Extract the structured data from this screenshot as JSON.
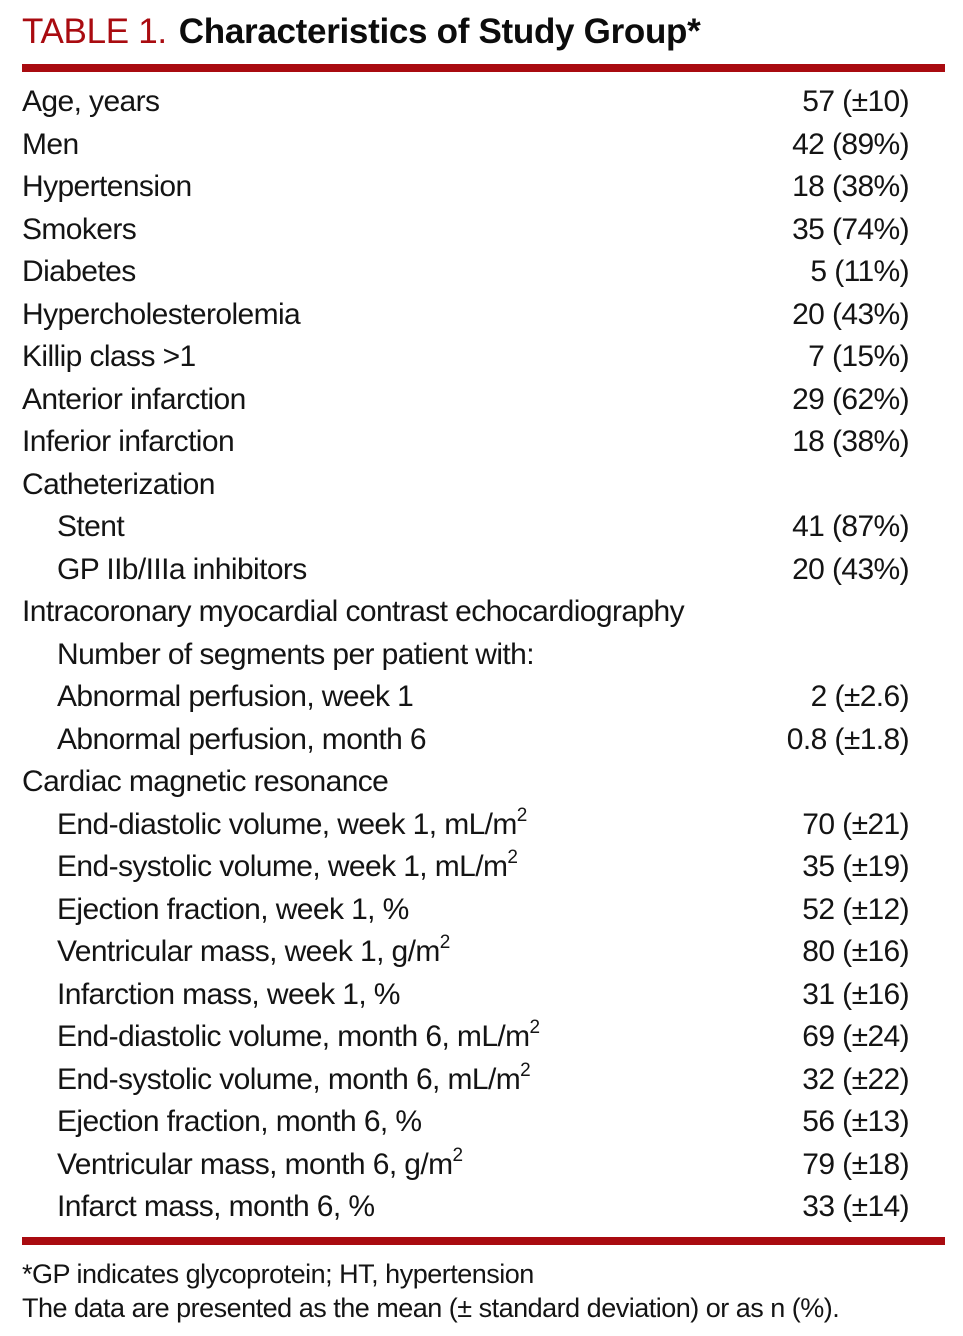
{
  "colors": {
    "accent": "#a90b10",
    "text": "#141414",
    "background": "#ffffff"
  },
  "title": {
    "label": "TABLE 1.",
    "caption": "Characteristics of Study Group*"
  },
  "table": {
    "rows": [
      {
        "label": "Age, years",
        "value": "57 (±10)",
        "indent": 0
      },
      {
        "label": "Men",
        "value": "42 (89%)",
        "indent": 0
      },
      {
        "label": "Hypertension",
        "value": "18 (38%)",
        "indent": 0
      },
      {
        "label": "Smokers",
        "value": "35 (74%)",
        "indent": 0
      },
      {
        "label": "Diabetes",
        "value": "5 (11%)",
        "indent": 0
      },
      {
        "label": "Hypercholesterolemia",
        "value": "20 (43%)",
        "indent": 0
      },
      {
        "label": "Killip class >1",
        "value": "7 (15%)",
        "indent": 0
      },
      {
        "label": "Anterior infarction",
        "value": "29 (62%)",
        "indent": 0
      },
      {
        "label": "Inferior infarction",
        "value": "18 (38%)",
        "indent": 0
      },
      {
        "label": "Catheterization",
        "value": "",
        "indent": 0
      },
      {
        "label": "Stent",
        "value": "41 (87%)",
        "indent": 1
      },
      {
        "label": "GP IIb/IIIa inhibitors",
        "value": "20 (43%)",
        "indent": 1
      },
      {
        "label": "Intracoronary myocardial contrast echocardiography",
        "value": "",
        "indent": 0
      },
      {
        "label": "Number of segments per patient with:",
        "value": "",
        "indent": 1
      },
      {
        "label": "Abnormal perfusion, week 1",
        "value": "2 (±2.6)",
        "indent": 1
      },
      {
        "label": "Abnormal perfusion, month 6",
        "value": "0.8 (±1.8)",
        "indent": 1
      },
      {
        "label": "Cardiac magnetic resonance",
        "value": "",
        "indent": 0
      },
      {
        "label": "End-diastolic volume, week 1, mL/m",
        "sup": "2",
        "value": "70 (±21)",
        "indent": 1
      },
      {
        "label": "End-systolic volume, week 1, mL/m",
        "sup": "2",
        "value": "35 (±19)",
        "indent": 1
      },
      {
        "label": "Ejection fraction, week 1, %",
        "value": "52 (±12)",
        "indent": 1
      },
      {
        "label": "Ventricular mass, week 1, g/m",
        "sup": "2",
        "value": "80 (±16)",
        "indent": 1
      },
      {
        "label": "Infarction mass, week 1, %",
        "value": "31 (±16)",
        "indent": 1
      },
      {
        "label": "End-diastolic volume, month 6, mL/m",
        "sup": "2",
        "value": "69 (±24)",
        "indent": 1
      },
      {
        "label": "End-systolic volume, month 6, mL/m",
        "sup": "2",
        "value": "32 (±22)",
        "indent": 1
      },
      {
        "label": "Ejection fraction, month 6, %",
        "value": "56 (±13)",
        "indent": 1
      },
      {
        "label": "Ventricular mass, month 6, g/m",
        "sup": "2",
        "value": "79 (±18)",
        "indent": 1
      },
      {
        "label": "Infarct mass, month 6, %",
        "value": "33 (±14)",
        "indent": 1
      }
    ]
  },
  "footnotes": [
    "*GP indicates glycoprotein; HT, hypertension",
    "The data are presented as the mean (± standard deviation) or as n (%)."
  ]
}
